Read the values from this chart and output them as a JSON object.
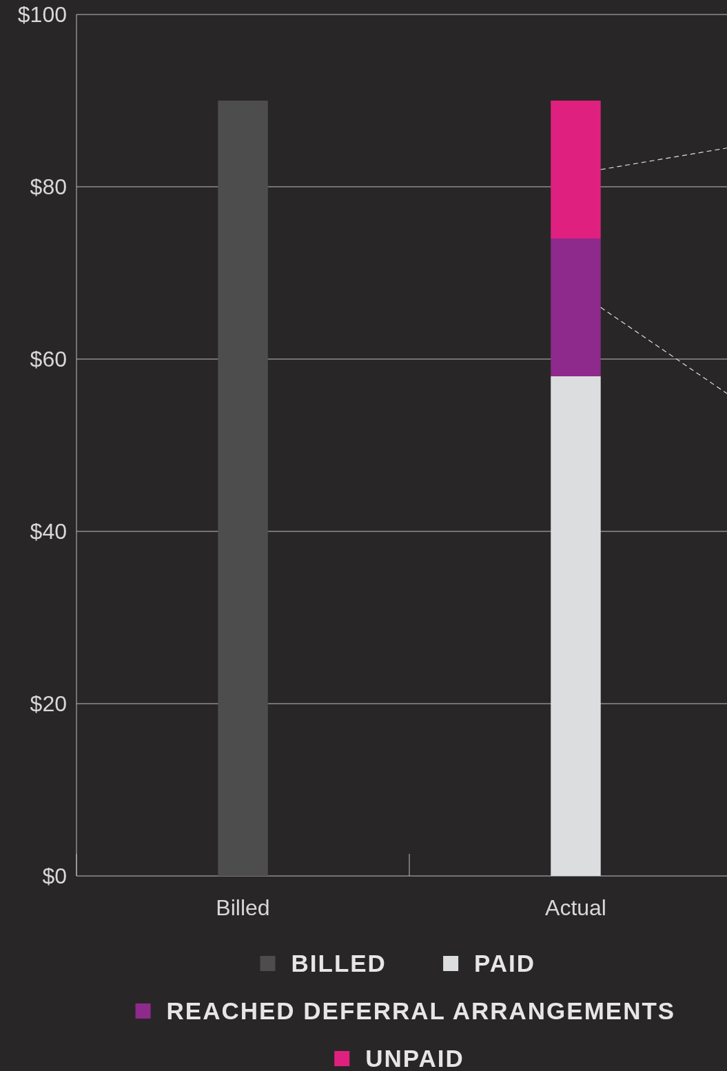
{
  "chart_data": {
    "type": "bar",
    "stacked": true,
    "categories": [
      "Billed",
      "Actual"
    ],
    "series": [
      {
        "name": "BILLED",
        "color": "#4d4d4d",
        "values": [
          90,
          null
        ]
      },
      {
        "name": "PAID",
        "color": "#dcdddf",
        "values": [
          null,
          58
        ]
      },
      {
        "name": "REACHED DEFERRAL ARRANGEMENTS",
        "color": "#8e2a8c",
        "values": [
          null,
          16
        ]
      },
      {
        "name": "UNPAID",
        "color": "#e0207f",
        "values": [
          null,
          16
        ]
      }
    ],
    "ylim": [
      0,
      100
    ],
    "yticks": [
      {
        "value": 0,
        "label": "$0"
      },
      {
        "value": 20,
        "label": "$20"
      },
      {
        "value": 40,
        "label": "$40"
      },
      {
        "value": 60,
        "label": "$60"
      },
      {
        "value": 80,
        "label": "$80"
      },
      {
        "value": 100,
        "label": "$100"
      }
    ],
    "grid": "y",
    "legend": "bottom"
  }
}
